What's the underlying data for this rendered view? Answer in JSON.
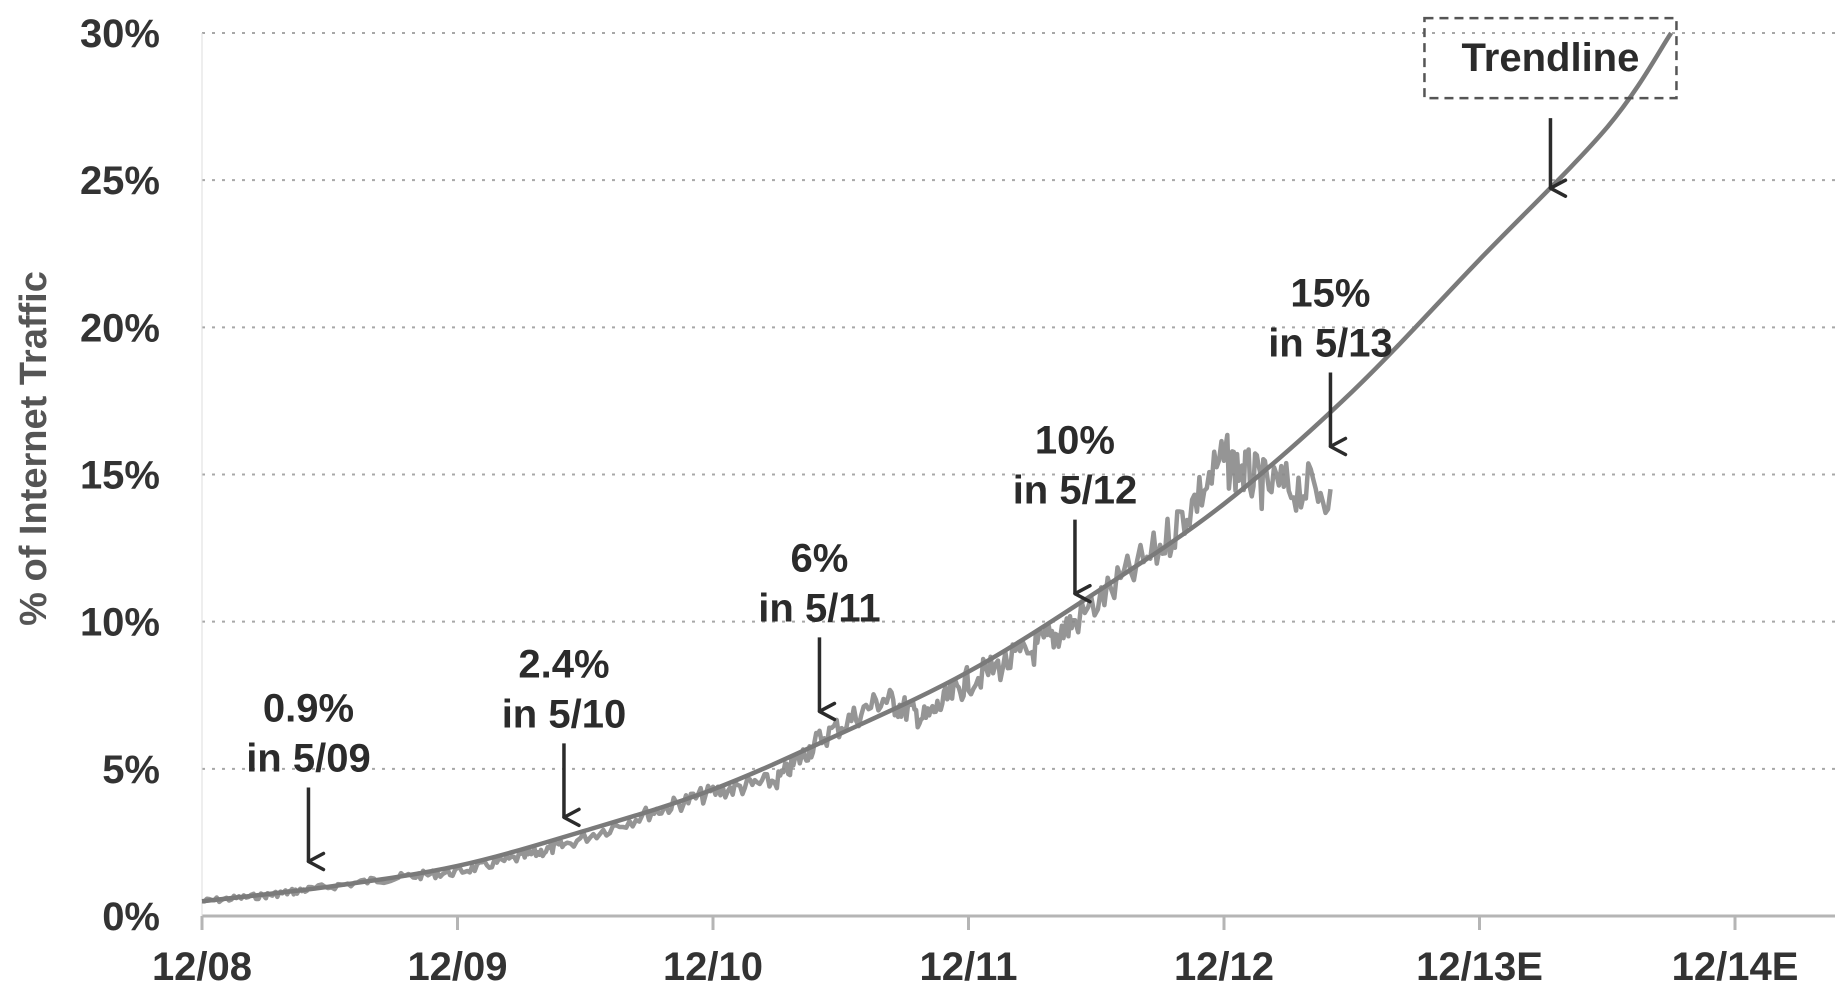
{
  "chart_data": {
    "type": "line",
    "title": "",
    "ylabel": "% of Internet Traffic",
    "xlabel": "",
    "x_ticks": [
      "12/08",
      "12/09",
      "12/10",
      "12/11",
      "12/12",
      "12/13E",
      "12/14E"
    ],
    "y_ticks": [
      "0%",
      "5%",
      "10%",
      "15%",
      "20%",
      "25%",
      "30%"
    ],
    "xlim": [
      "12/08",
      "12/14E"
    ],
    "ylim": [
      0,
      30
    ],
    "grid": "horizontal dotted",
    "series": [
      {
        "role": "actual",
        "color": "#8a8a8a",
        "points": [
          [
            "12/08",
            0.5
          ],
          [
            "3/09",
            0.7
          ],
          [
            "5/09",
            0.9
          ],
          [
            "9/09",
            1.3
          ],
          [
            "12/09",
            1.5
          ],
          [
            "3/10",
            2.0
          ],
          [
            "5/10",
            2.4
          ],
          [
            "9/10",
            3.5
          ],
          [
            "12/10",
            4.2
          ],
          [
            "3/11",
            4.6
          ],
          [
            "5/11",
            6.0
          ],
          [
            "8/11",
            7.4
          ],
          [
            "10/11",
            6.7
          ],
          [
            "12/11",
            8.0
          ],
          [
            "3/12",
            9.0
          ],
          [
            "5/12",
            10.0
          ],
          [
            "9/12",
            12.5
          ],
          [
            "12/12",
            15.5
          ],
          [
            "2/13",
            14.6
          ],
          [
            "5/13",
            14.5
          ]
        ]
      },
      {
        "role": "trendline",
        "color": "#7a7a7a",
        "points": [
          [
            "12/08",
            0.5
          ],
          [
            "6/09",
            1.0
          ],
          [
            "12/09",
            1.7
          ],
          [
            "6/10",
            2.9
          ],
          [
            "12/10",
            4.3
          ],
          [
            "6/11",
            6.2
          ],
          [
            "12/11",
            8.3
          ],
          [
            "6/12",
            11.0
          ],
          [
            "12/12",
            14.0
          ],
          [
            "6/13",
            17.8
          ],
          [
            "12/13E",
            22.3
          ],
          [
            "6/14E",
            26.8
          ],
          [
            "9/14E",
            30.0
          ]
        ]
      }
    ],
    "annotations": [
      {
        "line1": "0.9%",
        "line2": "in 5/09",
        "x": "5/09",
        "y": 0.9
      },
      {
        "line1": "2.4%",
        "line2": "in 5/10",
        "x": "5/10",
        "y": 2.4
      },
      {
        "line1": "6%",
        "line2": "in 5/11",
        "x": "5/11",
        "y": 6.0
      },
      {
        "line1": "10%",
        "line2": "in 5/12",
        "x": "5/12",
        "y": 10.0
      },
      {
        "line1": "15%",
        "line2": "in 5/13",
        "x": "5/13",
        "y": 15.0
      }
    ],
    "callout": {
      "label": "Trendline",
      "x": "5/13",
      "y": 25.0
    }
  }
}
